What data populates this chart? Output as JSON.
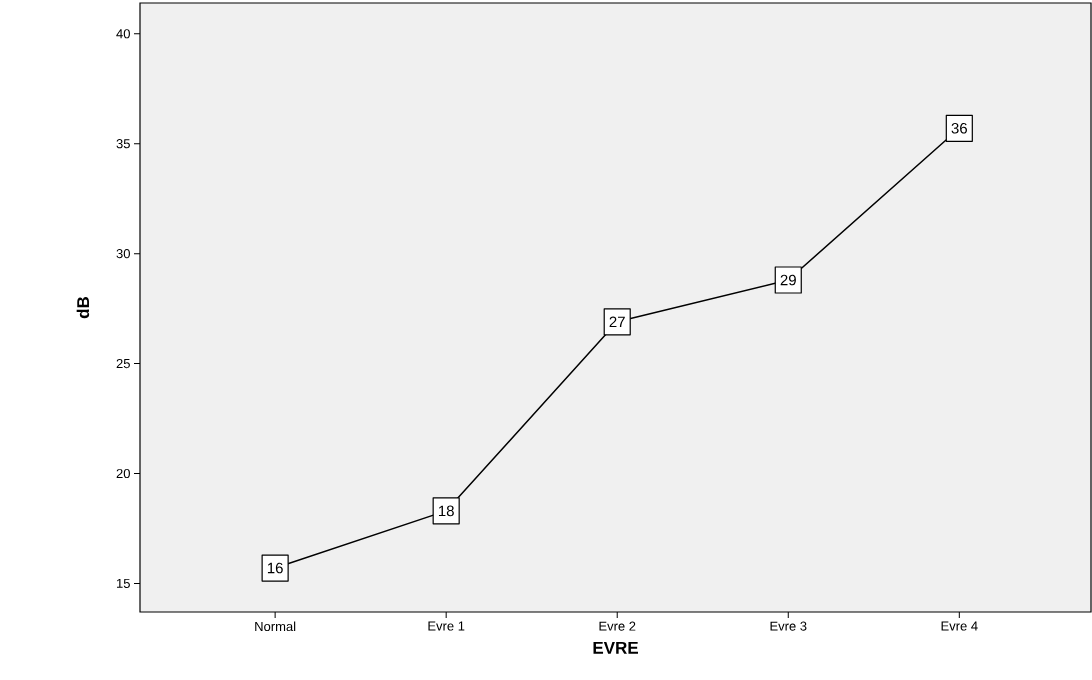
{
  "chart_data": {
    "type": "line",
    "xlabel": "EVRE",
    "ylabel": "dB",
    "categories": [
      "Normal",
      "Evre 1",
      "Evre 2",
      "Evre 3",
      "Evre 4"
    ],
    "values": [
      15.7,
      18.3,
      26.9,
      28.8,
      35.7
    ],
    "value_labels": [
      "16",
      "18",
      "27",
      "29",
      "36"
    ],
    "color": "#000000",
    "ylim": [
      13.7,
      41.4
    ],
    "yticks": [
      15,
      20,
      25,
      30,
      35,
      40
    ],
    "marker": "square",
    "grid": false
  }
}
